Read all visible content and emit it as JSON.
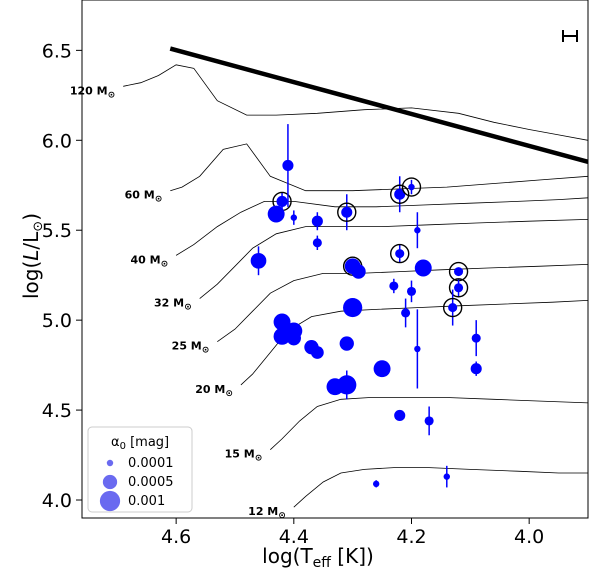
{
  "chart_data": {
    "type": "scatter",
    "title": "",
    "xlabel": "log(T_eff [K])",
    "ylabel": "log(L/L_sun)",
    "xlim": [
      4.76,
      3.9
    ],
    "ylim": [
      3.9,
      6.78
    ],
    "x_ticks": [
      4.6,
      4.4,
      4.2,
      4.0
    ],
    "x_tick_labels": [
      "4.6",
      "4.4",
      "4.2",
      "4.0"
    ],
    "y_ticks": [
      4.0,
      4.5,
      5.0,
      5.5,
      6.0,
      6.5
    ],
    "y_tick_labels": [
      "4.0",
      "4.5",
      "5.0",
      "5.5",
      "6.0",
      "6.5"
    ],
    "humphreys_davidson_limit": {
      "x": [
        4.61,
        3.9
      ],
      "y": [
        6.51,
        5.88
      ]
    },
    "mass_tracks": [
      {
        "label": "120 M",
        "x": [
          4.69,
          4.66,
          4.63,
          4.6,
          4.57,
          4.53,
          4.48,
          4.43,
          4.36,
          4.28,
          4.2,
          4.12,
          4.06,
          4.0,
          3.95,
          3.9
        ],
        "y": [
          6.3,
          6.32,
          6.36,
          6.42,
          6.4,
          6.22,
          6.14,
          6.14,
          6.15,
          6.17,
          6.18,
          6.15,
          6.1,
          6.06,
          6.03,
          6.0
        ]
      },
      {
        "label": "60 M",
        "x": [
          4.61,
          4.59,
          4.56,
          4.52,
          4.48,
          4.44,
          4.38,
          4.3,
          4.22,
          4.14,
          4.06,
          3.98,
          3.9
        ],
        "y": [
          5.72,
          5.74,
          5.8,
          5.95,
          5.98,
          5.8,
          5.72,
          5.72,
          5.73,
          5.74,
          5.76,
          5.78,
          5.8
        ]
      },
      {
        "label": "40 M",
        "x": [
          4.6,
          4.57,
          4.53,
          4.49,
          4.45,
          4.4,
          4.33,
          4.26,
          4.18,
          4.1,
          4.02,
          3.95,
          3.9
        ],
        "y": [
          5.36,
          5.42,
          5.52,
          5.6,
          5.66,
          5.66,
          5.63,
          5.63,
          5.64,
          5.65,
          5.66,
          5.67,
          5.68
        ]
      },
      {
        "label": "32 M",
        "x": [
          4.56,
          4.53,
          4.5,
          4.47,
          4.43,
          4.38,
          4.32,
          4.25,
          4.17,
          4.09,
          4.0,
          3.9
        ],
        "y": [
          5.12,
          5.2,
          5.3,
          5.4,
          5.48,
          5.52,
          5.52,
          5.52,
          5.53,
          5.54,
          5.55,
          5.56
        ]
      },
      {
        "label": "25 M",
        "x": [
          4.53,
          4.5,
          4.47,
          4.44,
          4.4,
          4.35,
          4.29,
          4.22,
          4.15,
          4.07,
          3.98,
          3.9
        ],
        "y": [
          4.88,
          4.95,
          5.05,
          5.15,
          5.22,
          5.26,
          5.26,
          5.27,
          5.28,
          5.29,
          5.3,
          5.31
        ]
      },
      {
        "label": "20 M",
        "x": [
          4.49,
          4.47,
          4.44,
          4.41,
          4.37,
          4.32,
          4.26,
          4.19,
          4.12,
          4.04,
          3.96,
          3.9
        ],
        "y": [
          4.64,
          4.7,
          4.82,
          4.94,
          5.02,
          5.05,
          5.06,
          5.07,
          5.08,
          5.09,
          5.1,
          5.11
        ]
      },
      {
        "label": "15 M",
        "x": [
          4.44,
          4.42,
          4.39,
          4.36,
          4.32,
          4.27,
          4.21,
          4.14,
          4.06,
          3.98,
          3.9
        ],
        "y": [
          4.28,
          4.34,
          4.44,
          4.52,
          4.56,
          4.57,
          4.57,
          4.57,
          4.56,
          4.55,
          4.54
        ]
      },
      {
        "label": "12 M",
        "x": [
          4.4,
          4.38,
          4.35,
          4.32,
          4.28,
          4.23,
          4.17,
          4.1,
          4.02,
          3.95,
          3.9
        ],
        "y": [
          3.96,
          4.02,
          4.1,
          4.15,
          4.17,
          4.18,
          4.18,
          4.17,
          4.16,
          4.15,
          4.15
        ]
      }
    ],
    "stars": [
      {
        "x": 4.42,
        "y": 5.66,
        "a0": 0.0003,
        "err": 0.05,
        "circled": true
      },
      {
        "x": 4.43,
        "y": 5.59,
        "a0": 0.0007,
        "err": 0.03,
        "circled": false
      },
      {
        "x": 4.41,
        "y": 5.86,
        "a0": 0.0003,
        "err": 0.23,
        "circled": false
      },
      {
        "x": 4.4,
        "y": 5.57,
        "a0": 0.0001,
        "err": 0.04,
        "circled": false
      },
      {
        "x": 4.36,
        "y": 5.55,
        "a0": 0.0003,
        "err": 0.05,
        "circled": false
      },
      {
        "x": 4.36,
        "y": 5.43,
        "a0": 0.0002,
        "err": 0.04,
        "circled": false
      },
      {
        "x": 4.31,
        "y": 5.6,
        "a0": 0.0003,
        "err": 0.1,
        "circled": true
      },
      {
        "x": 4.22,
        "y": 5.7,
        "a0": 0.0003,
        "err": 0.1,
        "circled": true
      },
      {
        "x": 4.2,
        "y": 5.74,
        "a0": 0.0001,
        "err": 0.04,
        "circled": true
      },
      {
        "x": 4.19,
        "y": 5.5,
        "a0": 0.0001,
        "err": 0.1,
        "circled": false
      },
      {
        "x": 4.46,
        "y": 5.33,
        "a0": 0.0006,
        "err": 0.08,
        "circled": false
      },
      {
        "x": 4.3,
        "y": 5.3,
        "a0": 0.0006,
        "err": 0.02,
        "circled": true
      },
      {
        "x": 4.29,
        "y": 5.27,
        "a0": 0.0005,
        "err": 0.02,
        "circled": false
      },
      {
        "x": 4.22,
        "y": 5.37,
        "a0": 0.0002,
        "err": 0.05,
        "circled": true
      },
      {
        "x": 4.18,
        "y": 5.29,
        "a0": 0.0007,
        "err": 0.04,
        "circled": false
      },
      {
        "x": 4.2,
        "y": 5.16,
        "a0": 0.0002,
        "err": 0.06,
        "circled": false
      },
      {
        "x": 4.23,
        "y": 5.19,
        "a0": 0.0002,
        "err": 0.04,
        "circled": false
      },
      {
        "x": 4.12,
        "y": 5.27,
        "a0": 0.0002,
        "err": 0.02,
        "circled": true
      },
      {
        "x": 4.12,
        "y": 5.18,
        "a0": 0.0002,
        "err": 0.05,
        "circled": true
      },
      {
        "x": 4.13,
        "y": 5.07,
        "a0": 0.0002,
        "err": 0.1,
        "circled": true
      },
      {
        "x": 4.3,
        "y": 5.07,
        "a0": 0.0009,
        "err": 0.03,
        "circled": false
      },
      {
        "x": 4.21,
        "y": 5.04,
        "a0": 0.0002,
        "err": 0.08,
        "circled": false
      },
      {
        "x": 4.42,
        "y": 4.99,
        "a0": 0.0007,
        "err": 0.04,
        "circled": false
      },
      {
        "x": 4.42,
        "y": 4.91,
        "a0": 0.0007,
        "err": 0.04,
        "circled": false
      },
      {
        "x": 4.4,
        "y": 4.9,
        "a0": 0.0005,
        "err": 0.04,
        "circled": false
      },
      {
        "x": 4.4,
        "y": 4.94,
        "a0": 0.0007,
        "err": 0.03,
        "circled": false
      },
      {
        "x": 4.37,
        "y": 4.85,
        "a0": 0.0005,
        "err": 0.03,
        "circled": false
      },
      {
        "x": 4.36,
        "y": 4.82,
        "a0": 0.0004,
        "err": 0.03,
        "circled": false
      },
      {
        "x": 4.31,
        "y": 4.87,
        "a0": 0.0005,
        "err": 0.02,
        "circled": false
      },
      {
        "x": 4.19,
        "y": 4.84,
        "a0": 0.0001,
        "err": 0.22,
        "circled": false
      },
      {
        "x": 4.09,
        "y": 4.9,
        "a0": 0.0002,
        "err": 0.1,
        "circled": false
      },
      {
        "x": 4.09,
        "y": 4.73,
        "a0": 0.0003,
        "err": 0.04,
        "circled": false
      },
      {
        "x": 4.25,
        "y": 4.73,
        "a0": 0.0007,
        "err": 0.03,
        "circled": false
      },
      {
        "x": 4.33,
        "y": 4.63,
        "a0": 0.0007,
        "err": 0.04,
        "circled": false
      },
      {
        "x": 4.31,
        "y": 4.64,
        "a0": 0.0009,
        "err": 0.08,
        "circled": false
      },
      {
        "x": 4.22,
        "y": 4.47,
        "a0": 0.0003,
        "err": 0.02,
        "circled": false
      },
      {
        "x": 4.17,
        "y": 4.44,
        "a0": 0.0002,
        "err": 0.08,
        "circled": false
      },
      {
        "x": 4.26,
        "y": 4.09,
        "a0": 0.0001,
        "err": 0.02,
        "circled": false
      },
      {
        "x": 4.14,
        "y": 4.13,
        "a0": 0.0001,
        "err": 0.06,
        "circled": false
      }
    ],
    "legend": {
      "title": "α₀ [mag]",
      "entries": [
        {
          "label": "0.0001",
          "a0": 0.0001
        },
        {
          "label": "0.0005",
          "a0": 0.0005
        },
        {
          "label": "0.001",
          "a0": 0.001
        }
      ],
      "placement": "bottom-left"
    },
    "colors": {
      "points": "#0000ff",
      "legend_points": "#6a6af0",
      "limit": "#000000",
      "tracks": "#000000"
    }
  }
}
